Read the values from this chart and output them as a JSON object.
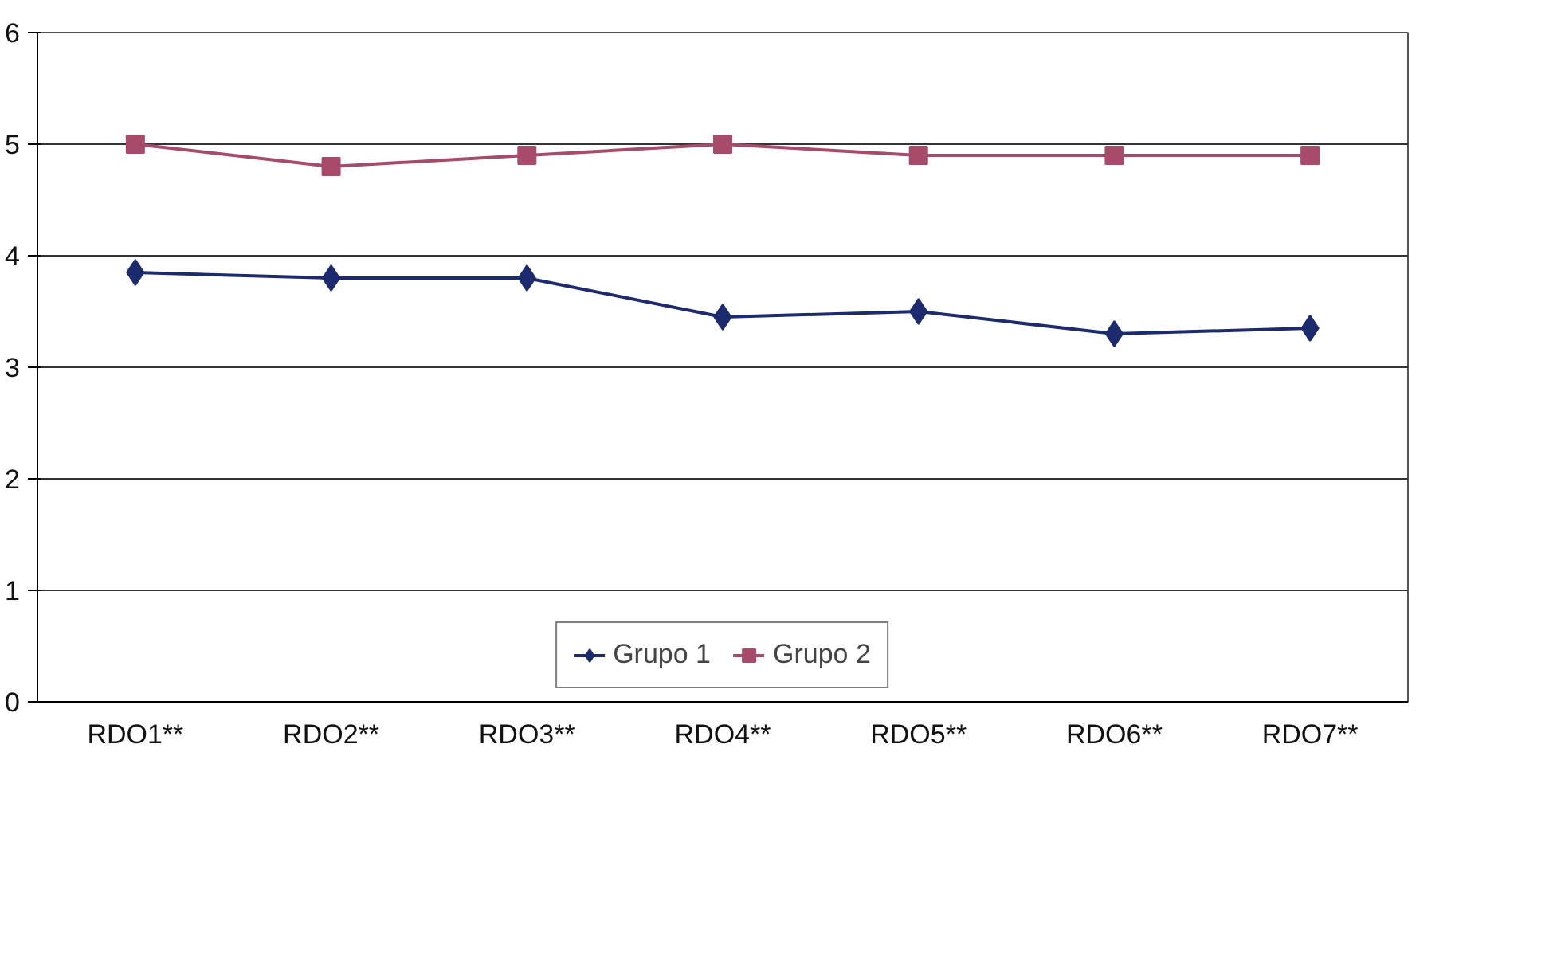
{
  "chart_data": {
    "type": "line",
    "categories": [
      "RDO1**",
      "RDO2**",
      "RDO3**",
      "RDO4**",
      "RDO5**",
      "RDO6**",
      "RDO7**"
    ],
    "series": [
      {
        "name": "Grupo 1",
        "color": "#1c2a6e",
        "marker": "diamond",
        "values": [
          3.85,
          3.8,
          3.8,
          3.45,
          3.5,
          3.3,
          3.35
        ]
      },
      {
        "name": "Grupo 2",
        "color": "#a84a6a",
        "marker": "square",
        "values": [
          5.0,
          4.8,
          4.9,
          5.0,
          4.9,
          4.9,
          4.9
        ]
      }
    ],
    "ylim": [
      0,
      6
    ],
    "yticks": [
      0,
      1,
      2,
      3,
      4,
      5,
      6
    ],
    "grid": "y",
    "legend": "bottom",
    "line_style": "solid"
  }
}
